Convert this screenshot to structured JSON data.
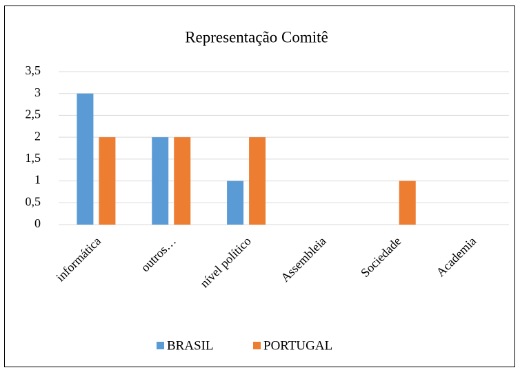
{
  "chart_data": {
    "type": "bar",
    "title": "Representação Comitê",
    "categories": [
      "informática",
      "outros…",
      "nível político",
      "Assembleia",
      "Sociedade",
      "Academia"
    ],
    "series": [
      {
        "name": "BRASIL",
        "color": "#5b9bd5",
        "values": [
          3,
          2,
          1,
          0,
          0,
          0
        ]
      },
      {
        "name": "PORTUGAL",
        "color": "#ed7d31",
        "values": [
          2,
          2,
          2,
          0,
          1,
          0
        ]
      }
    ],
    "ylim": [
      0,
      3.5
    ],
    "yticks": [
      0,
      {
        "value": 0.5,
        "label": "0,5"
      },
      1,
      {
        "value": 1.5,
        "label": "1,5"
      },
      2,
      {
        "value": 2.5,
        "label": "2,5"
      },
      3,
      {
        "value": 3.5,
        "label": "3,5"
      }
    ],
    "grid": true,
    "legend": "bottom"
  }
}
